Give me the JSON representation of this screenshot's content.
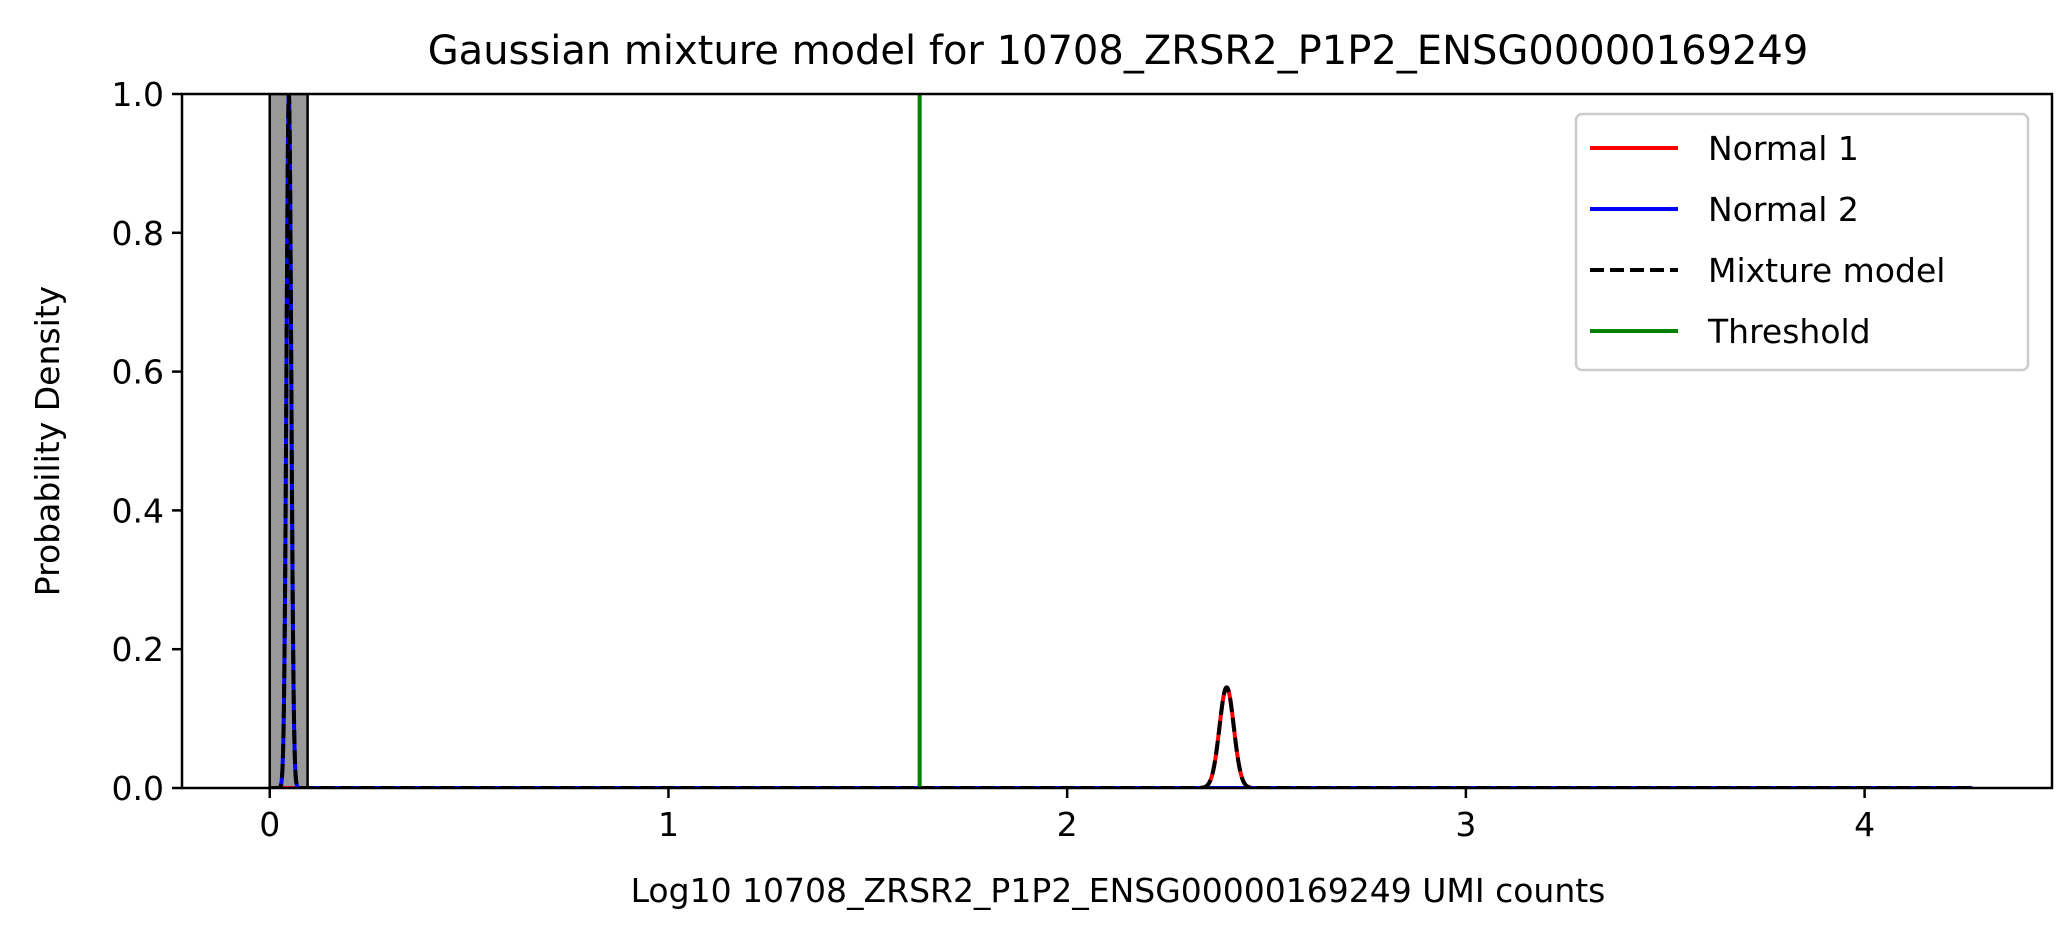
{
  "chart_data": {
    "type": "line",
    "title": "Gaussian mixture model for 10708_ZRSR2_P1P2_ENSG00000169249",
    "xlabel": "Log10 10708_ZRSR2_P1P2_ENSG00000169249 UMI counts",
    "ylabel": "Probability Density",
    "xlim": [
      -0.22,
      4.47
    ],
    "ylim": [
      0.0,
      1.0
    ],
    "xticks": [
      0,
      1,
      2,
      3,
      4
    ],
    "xtick_labels": [
      "0",
      "1",
      "2",
      "3",
      "4"
    ],
    "yticks": [
      0.0,
      0.2,
      0.4,
      0.6,
      0.8,
      1.0
    ],
    "ytick_labels": [
      "0.0",
      "0.2",
      "0.4",
      "0.6",
      "0.8",
      "1.0"
    ],
    "grid": false,
    "legend_placement": "top-right",
    "histogram": {
      "color": "#999999",
      "bins": [
        {
          "x0": 0.0,
          "x1": 0.095,
          "height": 1.0
        }
      ]
    },
    "series": [
      {
        "name": "Normal 1",
        "color": "#ff0000",
        "style": "solid",
        "components": [
          {
            "mean": 2.4,
            "sd": 0.018,
            "peak": 0.145
          }
        ],
        "x_range": [
          0.0,
          4.27
        ]
      },
      {
        "name": "Normal 2",
        "color": "#0000ff",
        "style": "solid",
        "components": [
          {
            "mean": 0.048,
            "sd": 0.006,
            "peak": 1.0
          }
        ],
        "x_range": [
          0.0,
          4.27
        ]
      },
      {
        "name": "Mixture model",
        "color": "#000000",
        "style": "dashed",
        "components": [
          {
            "mean": 2.4,
            "sd": 0.018,
            "peak": 0.145
          },
          {
            "mean": 0.048,
            "sd": 0.006,
            "peak": 1.0
          }
        ],
        "x_range": [
          0.0,
          4.27
        ]
      },
      {
        "name": "Threshold",
        "color": "#008000",
        "style": "solid",
        "vline": 1.63
      }
    ]
  }
}
